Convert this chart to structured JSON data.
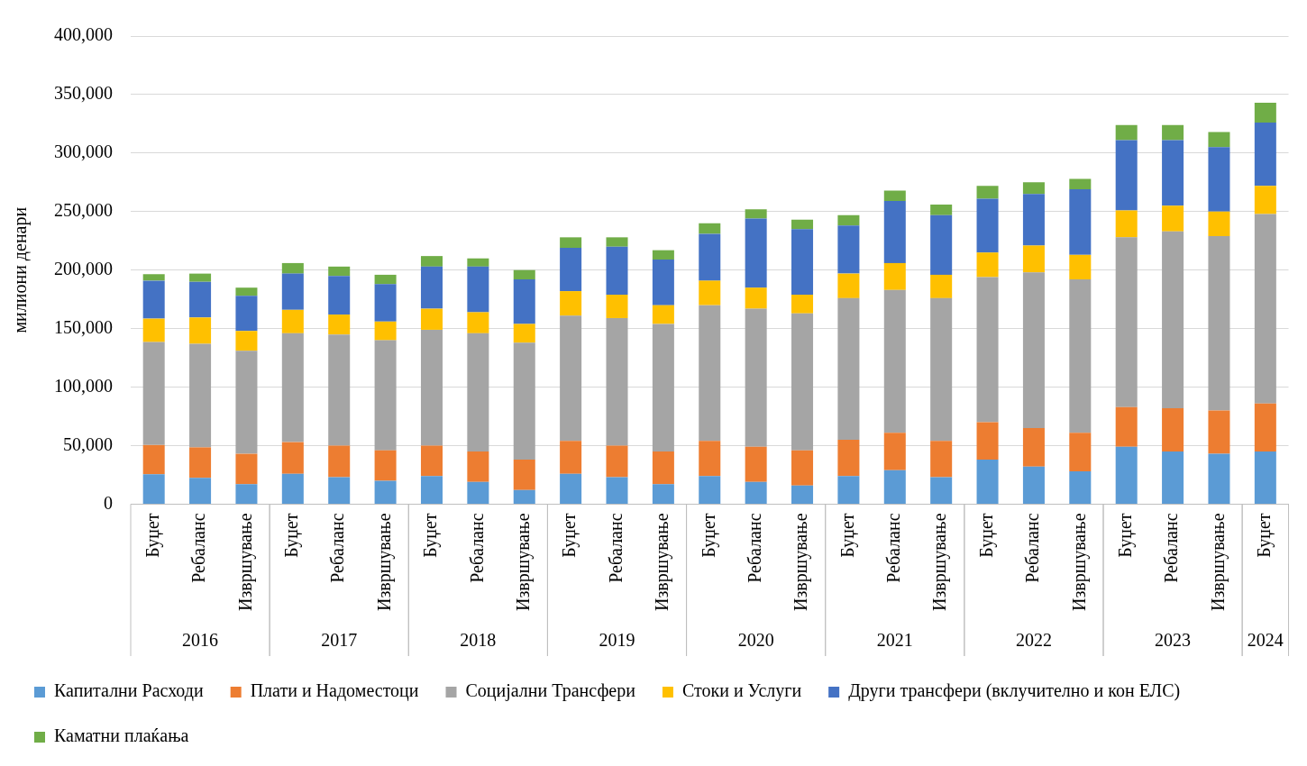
{
  "chart_data": {
    "type": "bar",
    "stacked": true,
    "ylabel": "милиони денари",
    "grid": "y",
    "legend": "bottom",
    "categories": [
      "Буџет",
      "Ребаланс",
      "Извршување",
      "Буџет",
      "Ребаланс",
      "Извршување",
      "Буџет",
      "Ребаланс",
      "Извршување",
      "Буџет",
      "Ребаланс",
      "Извршување",
      "Буџет",
      "Ребаланс",
      "Извршување",
      "Буџет",
      "Ребаланс",
      "Извршување",
      "Буџет",
      "Ребаланс",
      "Извршување",
      "Буџет",
      "Ребаланс",
      "Извршување",
      "Буџет"
    ],
    "annotations": [
      "2016",
      "2017",
      "2018",
      "2019",
      "2020",
      "2021",
      "2022",
      "2023",
      "2024"
    ],
    "ylim": [
      0,
      400000
    ],
    "yticks": [
      {
        "value": 0,
        "label": "0"
      },
      {
        "value": 50000,
        "label": "50,000"
      },
      {
        "value": 100000,
        "label": "100,000"
      },
      {
        "value": 150000,
        "label": "150,000"
      },
      {
        "value": 200000,
        "label": "200,000"
      },
      {
        "value": 250000,
        "label": "250,000"
      },
      {
        "value": 300000,
        "label": "300,000"
      },
      {
        "value": 350000,
        "label": "350,000"
      },
      {
        "value": 400000,
        "label": "400,000"
      }
    ],
    "series": [
      {
        "name": "Капитални Расходи",
        "color": "#5b9bd5",
        "values": [
          25500,
          22500,
          17000,
          26000,
          23000,
          20000,
          24000,
          19000,
          12000,
          26000,
          23000,
          17000,
          24000,
          19000,
          16000,
          24000,
          29000,
          23000,
          38000,
          32000,
          28000,
          49000,
          45000,
          43000,
          45000
        ]
      },
      {
        "name": "Плати и Надоместоци",
        "color": "#ed7d31",
        "values": [
          25000,
          26000,
          26000,
          27000,
          27000,
          26000,
          26000,
          26000,
          26000,
          28000,
          27000,
          28000,
          30000,
          30000,
          30000,
          31000,
          32000,
          31000,
          32000,
          33000,
          33000,
          34000,
          37000,
          37000,
          41000
        ]
      },
      {
        "name": "Социјални Трансфери",
        "color": "#a5a5a5",
        "values": [
          88000,
          88500,
          88000,
          93000,
          95000,
          94000,
          99000,
          101000,
          100000,
          107000,
          109000,
          109000,
          116000,
          118000,
          117000,
          121000,
          122000,
          122000,
          124000,
          133000,
          131000,
          145000,
          151000,
          149000,
          162000
        ]
      },
      {
        "name": "Стоки и Услуги",
        "color": "#ffc000",
        "values": [
          20000,
          22500,
          17000,
          20000,
          17000,
          16000,
          18000,
          18000,
          16000,
          21000,
          20000,
          16000,
          21000,
          18000,
          16000,
          21000,
          23000,
          20000,
          21000,
          23000,
          21000,
          23000,
          22000,
          21000,
          24000
        ]
      },
      {
        "name": "Други трансфери (вклучително и кон ЕЛС)",
        "color": "#4472c4",
        "values": [
          32500,
          30500,
          30000,
          31000,
          33000,
          32000,
          36000,
          39000,
          38000,
          37000,
          41000,
          39000,
          40000,
          59000,
          56000,
          41000,
          53000,
          51000,
          46000,
          44000,
          56000,
          60000,
          56000,
          55000,
          54000
        ]
      },
      {
        "name": "Каматни плаќања",
        "color": "#70ad47",
        "values": [
          5500,
          7000,
          7000,
          9000,
          8000,
          8000,
          9000,
          7000,
          8000,
          9000,
          8000,
          8000,
          9000,
          8000,
          8000,
          9000,
          9000,
          9000,
          11000,
          10000,
          9000,
          13000,
          13000,
          13000,
          17000
        ]
      }
    ]
  }
}
